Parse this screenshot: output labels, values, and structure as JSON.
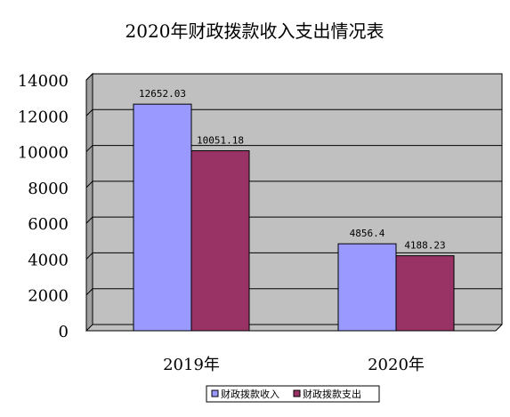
{
  "chart_data": {
    "type": "bar",
    "title": "2020年财政拨款收入支出情况表",
    "categories": [
      "2019年",
      "2020年"
    ],
    "series": [
      {
        "name": "财政拨款收入",
        "values": [
          12652.03,
          4856.4
        ],
        "labels": [
          "12652.03",
          "4856.4"
        ],
        "color": "#9999ff"
      },
      {
        "name": "财政拨款支出",
        "values": [
          10051.18,
          4188.23
        ],
        "labels": [
          "10051.18",
          "4188.23"
        ],
        "color": "#993366"
      }
    ],
    "ylim": [
      0,
      14000
    ],
    "yticks": [
      "0",
      "2000",
      "4000",
      "6000",
      "8000",
      "10000",
      "12000",
      "14000"
    ],
    "xlabel": "",
    "ylabel": "",
    "grid": true,
    "plot_background": "#c0c0c0",
    "legend_position": "bottom"
  }
}
